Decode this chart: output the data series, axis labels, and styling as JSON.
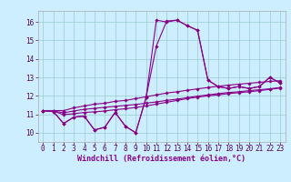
{
  "title": "",
  "xlabel": "Windchill (Refroidissement éolien,°C)",
  "ylabel": "",
  "background_color": "#cceeff",
  "line_color": "#880088",
  "grid_color": "#99cccc",
  "xlim": [
    -0.5,
    23.5
  ],
  "ylim": [
    9.5,
    16.6
  ],
  "xticks": [
    0,
    1,
    2,
    3,
    4,
    5,
    6,
    7,
    8,
    9,
    10,
    11,
    12,
    13,
    14,
    15,
    16,
    17,
    18,
    19,
    20,
    21,
    22,
    23
  ],
  "yticks": [
    10,
    11,
    12,
    13,
    14,
    15,
    16
  ],
  "series": {
    "line1": [
      11.2,
      11.15,
      10.5,
      10.85,
      10.9,
      10.15,
      10.3,
      11.1,
      10.35,
      10.0,
      11.9,
      16.1,
      16.0,
      16.1,
      15.8,
      15.55,
      12.85,
      12.5,
      12.4,
      12.5,
      12.4,
      12.5,
      13.0,
      12.7
    ],
    "line2": [
      11.2,
      11.15,
      10.5,
      10.85,
      10.9,
      10.15,
      10.3,
      11.1,
      10.35,
      10.0,
      11.9,
      14.7,
      16.05,
      16.1,
      15.8,
      15.55,
      12.85,
      12.5,
      12.4,
      12.5,
      12.4,
      12.5,
      13.0,
      12.7
    ],
    "line3": [
      11.2,
      11.2,
      11.2,
      11.35,
      11.45,
      11.55,
      11.6,
      11.7,
      11.75,
      11.85,
      11.95,
      12.05,
      12.15,
      12.22,
      12.3,
      12.38,
      12.45,
      12.52,
      12.58,
      12.63,
      12.68,
      12.73,
      12.78,
      12.82
    ],
    "line4": [
      11.2,
      11.18,
      11.08,
      11.18,
      11.27,
      11.32,
      11.38,
      11.43,
      11.48,
      11.53,
      11.6,
      11.67,
      11.75,
      11.82,
      11.9,
      11.98,
      12.05,
      12.12,
      12.18,
      12.22,
      12.28,
      12.33,
      12.38,
      12.45
    ],
    "line5": [
      11.2,
      11.17,
      10.98,
      11.03,
      11.1,
      11.13,
      11.18,
      11.25,
      11.3,
      11.37,
      11.45,
      11.55,
      11.65,
      11.75,
      11.85,
      11.93,
      12.0,
      12.05,
      12.12,
      12.17,
      12.22,
      12.28,
      12.35,
      12.42
    ]
  },
  "marker": "D",
  "markersize": 1.8,
  "linewidth": 0.8,
  "xlabel_fontsize": 6,
  "tick_fontsize": 5.5
}
